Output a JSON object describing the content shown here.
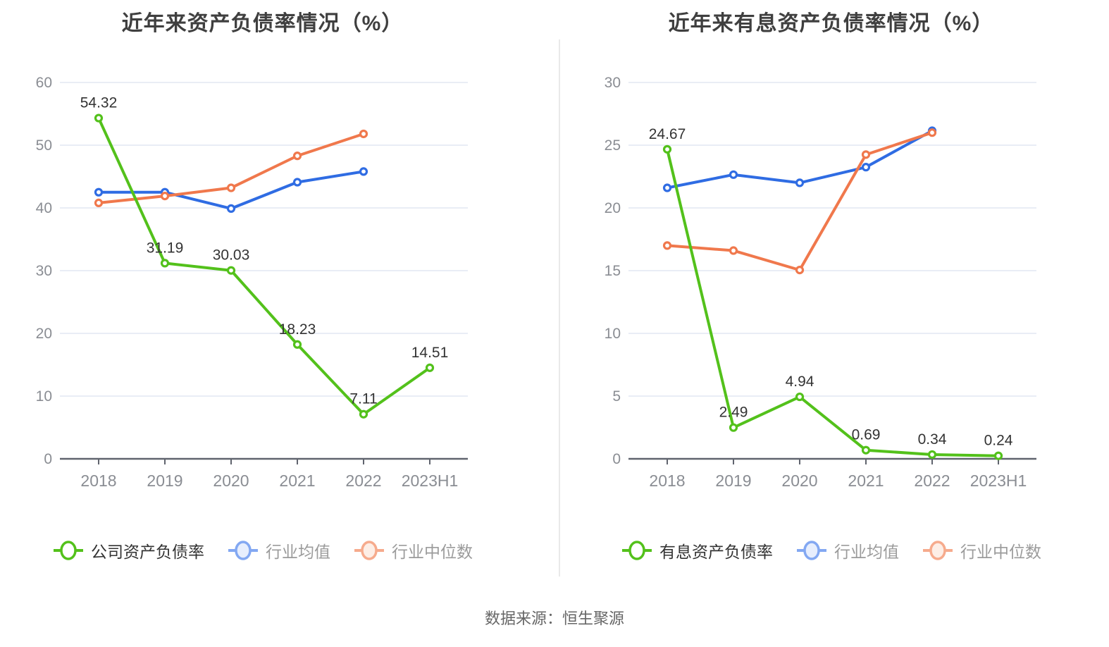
{
  "source_text": "数据来源：恒生聚源",
  "palette": {
    "company_green": "#53c11b",
    "industry_avg_blue": "#2f6ce3",
    "industry_median_orange": "#f0784c",
    "legend_blue_light": "#83a8f2",
    "legend_orange_light": "#f6ab8d",
    "axis_line": "#60646e",
    "grid_line": "#e2e7f2",
    "axis_text": "#8a8d93",
    "data_label_text": "#333333",
    "title_text": "#3f3f3f"
  },
  "chart_data": [
    {
      "type": "line",
      "title": "近年来资产负债率情况（%）",
      "categories": [
        "2018",
        "2019",
        "2020",
        "2021",
        "2022",
        "2023H1"
      ],
      "ylim": [
        0,
        60
      ],
      "ystep": 10,
      "grid": true,
      "legend_position": "bottom",
      "series": [
        {
          "id": "company-debt-ratio",
          "name": "公司资产负债率",
          "color": "#53c11b",
          "show_labels": true,
          "values": [
            54.32,
            31.19,
            30.03,
            18.23,
            7.11,
            14.51
          ]
        },
        {
          "id": "industry-average",
          "name": "行业均值",
          "color": "#2f6ce3",
          "show_labels": false,
          "values": [
            42.5,
            42.5,
            39.9,
            44.1,
            45.8,
            null
          ]
        },
        {
          "id": "industry-median",
          "name": "行业中位数",
          "color": "#f0784c",
          "show_labels": false,
          "values": [
            40.8,
            41.9,
            43.2,
            48.3,
            51.8,
            null
          ]
        }
      ],
      "legend": [
        {
          "label": "公司资产负债率",
          "stroke": "#53c11b",
          "fill": "#ffffff",
          "text_color": "#333333"
        },
        {
          "label": "行业均值",
          "stroke": "#83a8f2",
          "fill": "#e7eefd",
          "text_color": "#9b9b9b"
        },
        {
          "label": "行业中位数",
          "stroke": "#f6ab8d",
          "fill": "#fdeee6",
          "text_color": "#9b9b9b"
        }
      ]
    },
    {
      "type": "line",
      "title": "近年来有息资产负债率情况（%）",
      "categories": [
        "2018",
        "2019",
        "2020",
        "2021",
        "2022",
        "2023H1"
      ],
      "ylim": [
        0,
        30
      ],
      "ystep": 5,
      "grid": true,
      "legend_position": "bottom",
      "series": [
        {
          "id": "interest-debt-ratio",
          "name": "有息资产负债率",
          "color": "#53c11b",
          "show_labels": true,
          "values": [
            24.67,
            2.49,
            4.94,
            0.69,
            0.34,
            0.24
          ]
        },
        {
          "id": "industry-average",
          "name": "行业均值",
          "color": "#2f6ce3",
          "show_labels": false,
          "values": [
            21.6,
            22.65,
            22.0,
            23.25,
            26.15,
            null
          ]
        },
        {
          "id": "industry-median",
          "name": "行业中位数",
          "color": "#f0784c",
          "show_labels": false,
          "values": [
            17.0,
            16.6,
            15.05,
            24.25,
            26.0,
            null
          ]
        }
      ],
      "legend": [
        {
          "label": "有息资产负债率",
          "stroke": "#53c11b",
          "fill": "#ffffff",
          "text_color": "#333333"
        },
        {
          "label": "行业均值",
          "stroke": "#83a8f2",
          "fill": "#e7eefd",
          "text_color": "#9b9b9b"
        },
        {
          "label": "行业中位数",
          "stroke": "#f6ab8d",
          "fill": "#fdeee6",
          "text_color": "#9b9b9b"
        }
      ]
    }
  ]
}
